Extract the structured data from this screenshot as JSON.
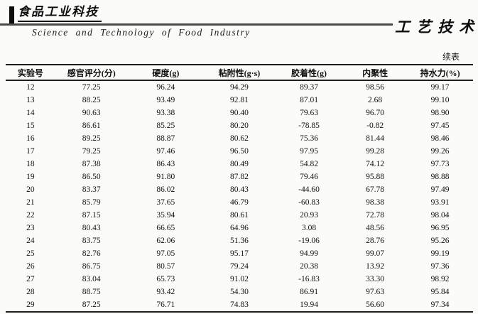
{
  "header": {
    "journal_name_cn": "食品工业科技",
    "journal_name_en": "Science and Technology of Food Industry",
    "section_title": "工艺技术"
  },
  "table": {
    "continued_label": "续表",
    "columns": [
      "实验号",
      "感官评分(分)",
      "硬度(g)",
      "粘附性(g·s)",
      "胶着性(g)",
      "内聚性",
      "持水力(%)"
    ],
    "rows": [
      [
        "12",
        "77.25",
        "96.24",
        "94.29",
        "89.37",
        "98.56",
        "99.17"
      ],
      [
        "13",
        "88.25",
        "93.49",
        "92.81",
        "87.01",
        "2.68",
        "99.10"
      ],
      [
        "14",
        "90.63",
        "93.38",
        "90.40",
        "79.63",
        "96.70",
        "98.90"
      ],
      [
        "15",
        "86.61",
        "85.25",
        "80.20",
        "-78.85",
        "-0.82",
        "97.45"
      ],
      [
        "16",
        "89.25",
        "88.87",
        "80.62",
        "75.36",
        "81.44",
        "98.46"
      ],
      [
        "17",
        "79.25",
        "97.46",
        "96.50",
        "97.95",
        "99.28",
        "99.26"
      ],
      [
        "18",
        "87.38",
        "86.43",
        "80.49",
        "54.82",
        "74.12",
        "97.73"
      ],
      [
        "19",
        "86.50",
        "91.80",
        "87.82",
        "79.46",
        "95.88",
        "98.88"
      ],
      [
        "20",
        "83.37",
        "86.02",
        "80.43",
        "-44.60",
        "67.78",
        "97.49"
      ],
      [
        "21",
        "85.79",
        "37.65",
        "46.79",
        "-60.83",
        "98.38",
        "93.91"
      ],
      [
        "22",
        "87.15",
        "35.94",
        "80.61",
        "20.93",
        "72.78",
        "98.04"
      ],
      [
        "23",
        "80.43",
        "66.65",
        "64.96",
        "3.08",
        "48.56",
        "96.95"
      ],
      [
        "24",
        "83.75",
        "62.06",
        "51.36",
        "-19.06",
        "28.76",
        "95.26"
      ],
      [
        "25",
        "82.76",
        "97.05",
        "95.17",
        "94.99",
        "99.07",
        "99.19"
      ],
      [
        "26",
        "86.75",
        "80.57",
        "79.24",
        "20.38",
        "13.92",
        "97.36"
      ],
      [
        "27",
        "83.04",
        "65.73",
        "91.02",
        "-16.83",
        "33.30",
        "98.92"
      ],
      [
        "28",
        "88.75",
        "93.42",
        "54.30",
        "86.91",
        "97.63",
        "95.84"
      ],
      [
        "29",
        "87.25",
        "76.71",
        "74.83",
        "19.94",
        "56.60",
        "97.34"
      ]
    ]
  },
  "colors": {
    "page_background": "#fbfbf9",
    "ink": "#141414",
    "rule_gray": "#4a4a4a"
  }
}
